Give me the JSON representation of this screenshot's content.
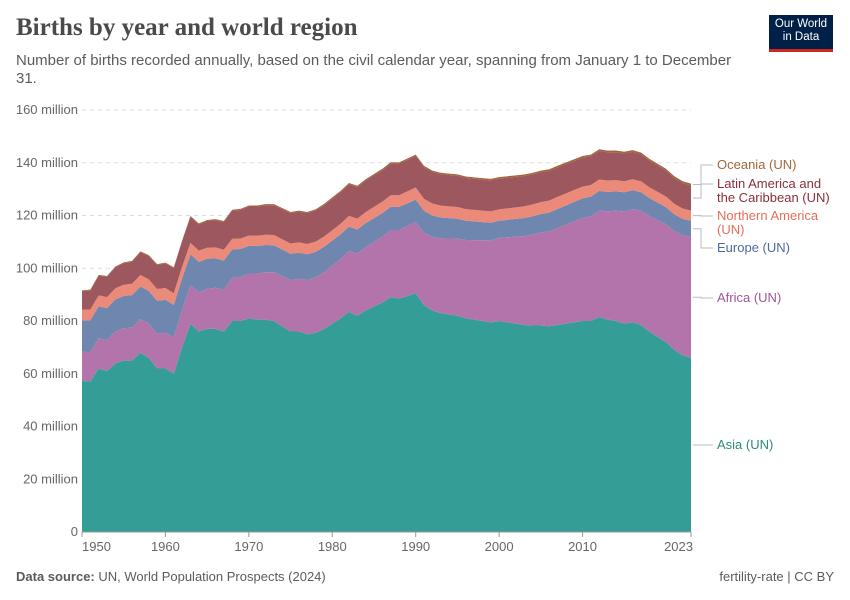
{
  "header": {
    "title": "Births by year and world region",
    "subtitle": "Number of births recorded annually, based on the civil calendar year, spanning from January 1 to December 31.",
    "logo_text": "Our World in Data"
  },
  "footer": {
    "source_label": "Data source:",
    "source_text": "UN, World Population Prospects (2024)",
    "right_text": "fertility-rate | CC BY"
  },
  "chart_data": {
    "type": "area",
    "stacked": true,
    "title": "Births by year and world region",
    "xlabel": "",
    "ylabel": "",
    "xlim": [
      1950,
      2023
    ],
    "ylim": [
      0,
      160000000
    ],
    "x_ticks": [
      "1950",
      "1960",
      "1970",
      "1980",
      "1990",
      "2000",
      "2010",
      "2023"
    ],
    "y_ticks": [
      "0",
      "20 million",
      "40 million",
      "60 million",
      "80 million",
      "100 million",
      "120 million",
      "140 million",
      "160 million"
    ],
    "grid": "horizontal dashed",
    "legend": "right, inline labels",
    "unit": "million",
    "series": [
      {
        "name": "Asia (UN)",
        "color": "#349e96",
        "label_color": "#2c8a7f",
        "x": [
          1950,
          1951,
          1952,
          1953,
          1954,
          1955,
          1956,
          1957,
          1958,
          1959,
          1960,
          1961,
          1962,
          1963,
          1964,
          1965,
          1966,
          1967,
          1968,
          1969,
          1970,
          1971,
          1972,
          1973,
          1974,
          1975,
          1976,
          1977,
          1978,
          1979,
          1980,
          1981,
          1982,
          1983,
          1984,
          1985,
          1986,
          1987,
          1988,
          1989,
          1990,
          1991,
          1992,
          1993,
          1994,
          1995,
          1996,
          1997,
          1998,
          1999,
          2000,
          2001,
          2002,
          2003,
          2004,
          2005,
          2006,
          2007,
          2008,
          2009,
          2010,
          2011,
          2012,
          2013,
          2014,
          2015,
          2016,
          2017,
          2018,
          2019,
          2020,
          2021,
          2022,
          2023
        ],
        "values": [
          57.3,
          57,
          62,
          61,
          64,
          65,
          65,
          68,
          66,
          62,
          62,
          60,
          70,
          79,
          76,
          77,
          77,
          76,
          80,
          80,
          81,
          80.5,
          80.5,
          80,
          78,
          76,
          76,
          75,
          75.5,
          77,
          79,
          81,
          83.5,
          82,
          84,
          85.5,
          87,
          89,
          88.5,
          89.5,
          90.5,
          86,
          84,
          83,
          82.5,
          82,
          81,
          80.5,
          80,
          79.5,
          80,
          79.5,
          79,
          78.5,
          78.3,
          78.3,
          78,
          78.5,
          79,
          79.5,
          80,
          80,
          81.5,
          80.5,
          80,
          79,
          79.5,
          78.5,
          76,
          74,
          72,
          69,
          67,
          66
        ]
      },
      {
        "name": "Africa (UN)",
        "color": "#b274ab",
        "label_color": "#a2559c",
        "x": [
          1950,
          1960,
          1970,
          1980,
          1990,
          2000,
          2010,
          2015,
          2023
        ],
        "values": [
          11,
          13.5,
          17,
          22,
          27,
          31.5,
          39,
          42.5,
          46
        ]
      },
      {
        "name": "Europe (UN)",
        "color": "#6f86ae",
        "label_color": "#4c6a9c",
        "x": [
          1950,
          1960,
          1964,
          1970,
          1980,
          1990,
          2000,
          2010,
          2015,
          2023
        ],
        "values": [
          12,
          12.5,
          11.5,
          10.5,
          9.5,
          8.5,
          6.5,
          7.5,
          7.3,
          6
        ]
      },
      {
        "name": "Northern America (UN)",
        "color": "#ec8a7a",
        "label_color": "#e56e5a",
        "x": [
          1950,
          1960,
          1970,
          1980,
          1990,
          2000,
          2007,
          2015,
          2023
        ],
        "values": [
          4.0,
          4.5,
          3.9,
          3.9,
          4.6,
          4.3,
          4.6,
          4.2,
          3.9
        ]
      },
      {
        "name": "Latin America and the Caribbean (UN)",
        "color": "#9c575f",
        "label_color": "#883039",
        "x": [
          1950,
          1960,
          1970,
          1980,
          1990,
          2000,
          2010,
          2015,
          2023
        ],
        "values": [
          7,
          9.3,
          11,
          12,
          12,
          11.7,
          11,
          10.5,
          9.5
        ]
      },
      {
        "name": "Oceania (UN)",
        "color": "#a2663b",
        "label_color": "#a2663b",
        "x": [
          1950,
          1990,
          2023
        ],
        "values": [
          0.3,
          0.5,
          0.7
        ]
      }
    ]
  }
}
